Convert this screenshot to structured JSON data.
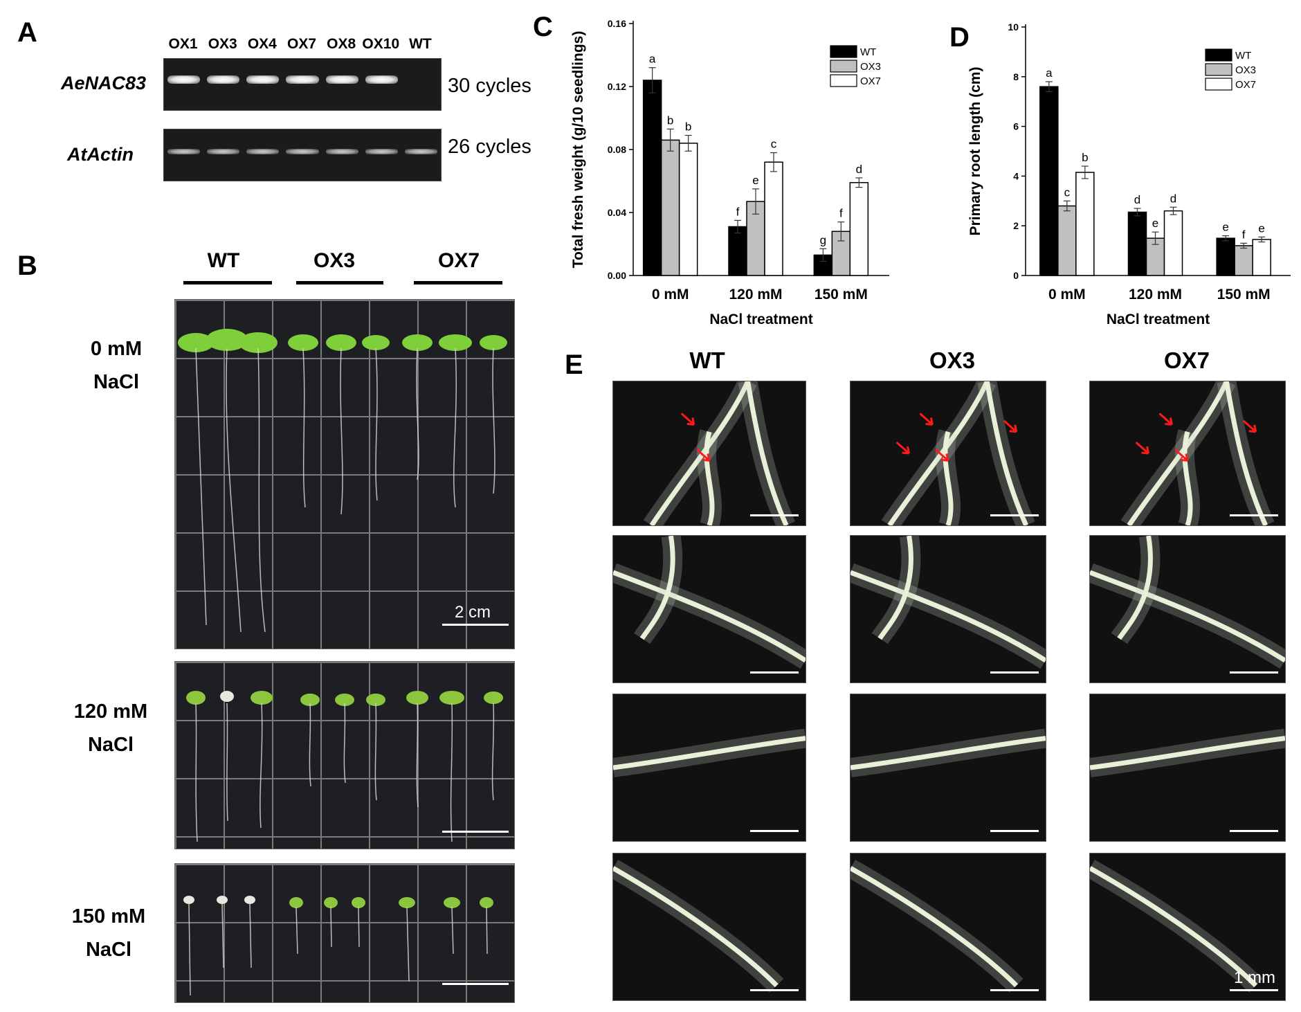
{
  "panel_a": {
    "letter": "A",
    "lanes": [
      "OX1",
      "OX3",
      "OX4",
      "OX7",
      "OX8",
      "OX10",
      "WT"
    ],
    "genes": [
      {
        "name": "AeNAC83",
        "cycles": "30 cycles"
      },
      {
        "name": "AtActin",
        "cycles": "26 cycles"
      }
    ]
  },
  "panel_b": {
    "letter": "B",
    "genotypes": [
      "WT",
      "OX3",
      "OX7"
    ],
    "conditions": [
      {
        "line1": "0 mM",
        "line2": "NaCl"
      },
      {
        "line1": "120 mM",
        "line2": "NaCl"
      },
      {
        "line1": "150 mM",
        "line2": "NaCl"
      }
    ],
    "scale_label": "2 cm"
  },
  "panel_c": {
    "letter": "C"
  },
  "panel_d": {
    "letter": "D"
  },
  "panel_e": {
    "letter": "E",
    "columns": [
      "WT",
      "OX3",
      "OX7"
    ],
    "scale_label": "1 mm"
  },
  "chart_data": [
    {
      "type": "bar",
      "panel": "C",
      "title": "",
      "xlabel": "NaCl treatment",
      "ylabel": "Total fresh weight (g/10 seedlings)",
      "categories": [
        "0 mM",
        "120 mM",
        "150 mM"
      ],
      "ylim": [
        0,
        0.16
      ],
      "yticks": [
        "0.00",
        "0.04",
        "0.08",
        "0.12",
        "0.16"
      ],
      "legend_position": "top-right",
      "series": [
        {
          "name": "WT",
          "color": "#000000",
          "values": [
            0.124,
            0.031,
            0.013
          ],
          "errors": [
            0.008,
            0.004,
            0.004
          ],
          "letters": [
            "a",
            "f",
            "g"
          ]
        },
        {
          "name": "OX3",
          "color": "#c0c0c0",
          "values": [
            0.086,
            0.047,
            0.028
          ],
          "errors": [
            0.007,
            0.008,
            0.006
          ],
          "letters": [
            "b",
            "e",
            "f"
          ]
        },
        {
          "name": "OX7",
          "color": "#ffffff",
          "values": [
            0.084,
            0.072,
            0.059
          ],
          "errors": [
            0.005,
            0.006,
            0.003
          ],
          "letters": [
            "b",
            "c",
            "d"
          ]
        }
      ]
    },
    {
      "type": "bar",
      "panel": "D",
      "title": "",
      "xlabel": "NaCl treatment",
      "ylabel": "Primary root length (cm)",
      "categories": [
        "0 mM",
        "120 mM",
        "150 mM"
      ],
      "ylim": [
        0,
        10
      ],
      "yticks": [
        "0",
        "2",
        "4",
        "6",
        "8",
        "10"
      ],
      "legend_position": "top-right",
      "series": [
        {
          "name": "WT",
          "color": "#000000",
          "values": [
            7.6,
            2.55,
            1.5
          ],
          "errors": [
            0.2,
            0.15,
            0.1
          ],
          "letters": [
            "a",
            "d",
            "e"
          ]
        },
        {
          "name": "OX3",
          "color": "#c0c0c0",
          "values": [
            2.8,
            1.5,
            1.2
          ],
          "errors": [
            0.2,
            0.25,
            0.1
          ],
          "letters": [
            "c",
            "e",
            "f"
          ]
        },
        {
          "name": "OX7",
          "color": "#ffffff",
          "values": [
            4.15,
            2.6,
            1.45
          ],
          "errors": [
            0.25,
            0.15,
            0.1
          ],
          "letters": [
            "b",
            "d",
            "e"
          ]
        }
      ]
    }
  ]
}
